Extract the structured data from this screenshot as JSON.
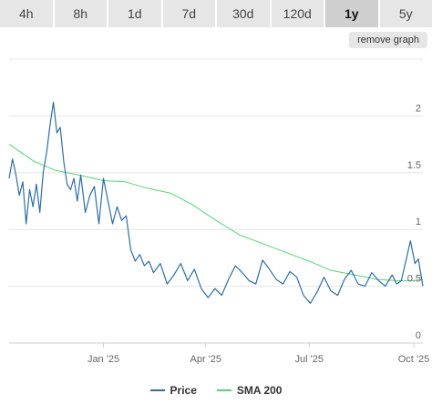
{
  "tabs": [
    {
      "label": "4h",
      "active": false
    },
    {
      "label": "8h",
      "active": false
    },
    {
      "label": "1d",
      "active": false
    },
    {
      "label": "7d",
      "active": false
    },
    {
      "label": "30d",
      "active": false
    },
    {
      "label": "120d",
      "active": false
    },
    {
      "label": "1y",
      "active": true
    },
    {
      "label": "5y",
      "active": false
    }
  ],
  "remove_graph_label": "remove graph",
  "colors": {
    "price": "#2f6ea1",
    "sma": "#58d27a",
    "grid": "#e6e6e6",
    "axis_text": "#666666"
  },
  "chart_data": {
    "type": "line",
    "title": "",
    "xlabel": "",
    "ylabel": "",
    "ylim": [
      0,
      2.5
    ],
    "y_ticks": [
      0,
      0.5,
      1,
      1.5,
      2
    ],
    "y_tick_labels": [
      "0",
      "0.5",
      "1",
      "1.5",
      "2"
    ],
    "y_axis_side": "right",
    "grid": true,
    "legend_position": "bottom",
    "xlim": [
      "2024-10-10",
      "2025-10-09"
    ],
    "x_ticks": [
      "2025-01-01",
      "2025-04-01",
      "2025-07-01",
      "2025-10-01"
    ],
    "x_tick_labels": [
      "Jan '25",
      "Apr '25",
      "Jul '25",
      "Oct '25"
    ],
    "series": [
      {
        "name": "Price",
        "color": "#2f6ea1",
        "x": [
          "2024-10-10",
          "2024-10-13",
          "2024-10-16",
          "2024-10-19",
          "2024-10-22",
          "2024-10-25",
          "2024-10-28",
          "2024-10-31",
          "2024-11-03",
          "2024-11-06",
          "2024-11-09",
          "2024-11-12",
          "2024-11-15",
          "2024-11-18",
          "2024-11-21",
          "2024-11-24",
          "2024-11-27",
          "2024-11-30",
          "2024-12-03",
          "2024-12-06",
          "2024-12-09",
          "2024-12-12",
          "2024-12-16",
          "2024-12-20",
          "2024-12-24",
          "2024-12-28",
          "2025-01-01",
          "2025-01-05",
          "2025-01-09",
          "2025-01-13",
          "2025-01-17",
          "2025-01-21",
          "2025-01-25",
          "2025-01-29",
          "2025-02-02",
          "2025-02-06",
          "2025-02-10",
          "2025-02-14",
          "2025-02-20",
          "2025-02-26",
          "2025-03-04",
          "2025-03-10",
          "2025-03-16",
          "2025-03-22",
          "2025-03-28",
          "2025-04-03",
          "2025-04-09",
          "2025-04-15",
          "2025-04-21",
          "2025-04-27",
          "2025-05-03",
          "2025-05-09",
          "2025-05-15",
          "2025-05-21",
          "2025-05-27",
          "2025-06-02",
          "2025-06-08",
          "2025-06-14",
          "2025-06-20",
          "2025-06-26",
          "2025-07-02",
          "2025-07-08",
          "2025-07-14",
          "2025-07-20",
          "2025-07-26",
          "2025-08-01",
          "2025-08-07",
          "2025-08-13",
          "2025-08-19",
          "2025-08-25",
          "2025-08-31",
          "2025-09-06",
          "2025-09-12",
          "2025-09-16",
          "2025-09-20",
          "2025-09-24",
          "2025-09-28",
          "2025-10-02",
          "2025-10-05",
          "2025-10-07",
          "2025-10-09"
        ],
        "values": [
          1.45,
          1.62,
          1.48,
          1.3,
          1.42,
          1.05,
          1.35,
          1.2,
          1.4,
          1.15,
          1.5,
          1.68,
          1.92,
          2.12,
          1.85,
          1.9,
          1.6,
          1.4,
          1.35,
          1.45,
          1.25,
          1.48,
          1.15,
          1.3,
          1.38,
          1.05,
          1.45,
          1.25,
          1.05,
          1.2,
          1.08,
          1.12,
          0.82,
          0.72,
          0.78,
          0.68,
          0.72,
          0.62,
          0.7,
          0.52,
          0.6,
          0.7,
          0.55,
          0.65,
          0.48,
          0.4,
          0.48,
          0.42,
          0.56,
          0.68,
          0.62,
          0.55,
          0.52,
          0.73,
          0.65,
          0.56,
          0.52,
          0.63,
          0.58,
          0.42,
          0.35,
          0.45,
          0.58,
          0.46,
          0.42,
          0.56,
          0.64,
          0.52,
          0.5,
          0.62,
          0.55,
          0.5,
          0.6,
          0.52,
          0.55,
          0.72,
          0.9,
          0.7,
          0.74,
          0.62,
          0.5
        ],
        "line_width": 1.2
      },
      {
        "name": "SMA 200",
        "color": "#58d27a",
        "x": [
          "2024-10-10",
          "2024-11-01",
          "2024-11-20",
          "2024-12-10",
          "2025-01-01",
          "2025-01-20",
          "2025-02-10",
          "2025-03-01",
          "2025-03-20",
          "2025-04-10",
          "2025-05-01",
          "2025-05-20",
          "2025-06-10",
          "2025-07-01",
          "2025-07-20",
          "2025-08-10",
          "2025-08-30",
          "2025-09-15",
          "2025-09-30",
          "2025-10-09"
        ],
        "values": [
          1.75,
          1.6,
          1.52,
          1.48,
          1.43,
          1.42,
          1.36,
          1.32,
          1.22,
          1.08,
          0.95,
          0.88,
          0.8,
          0.72,
          0.64,
          0.6,
          0.56,
          0.55,
          0.55,
          0.56
        ],
        "line_width": 1
      }
    ]
  }
}
